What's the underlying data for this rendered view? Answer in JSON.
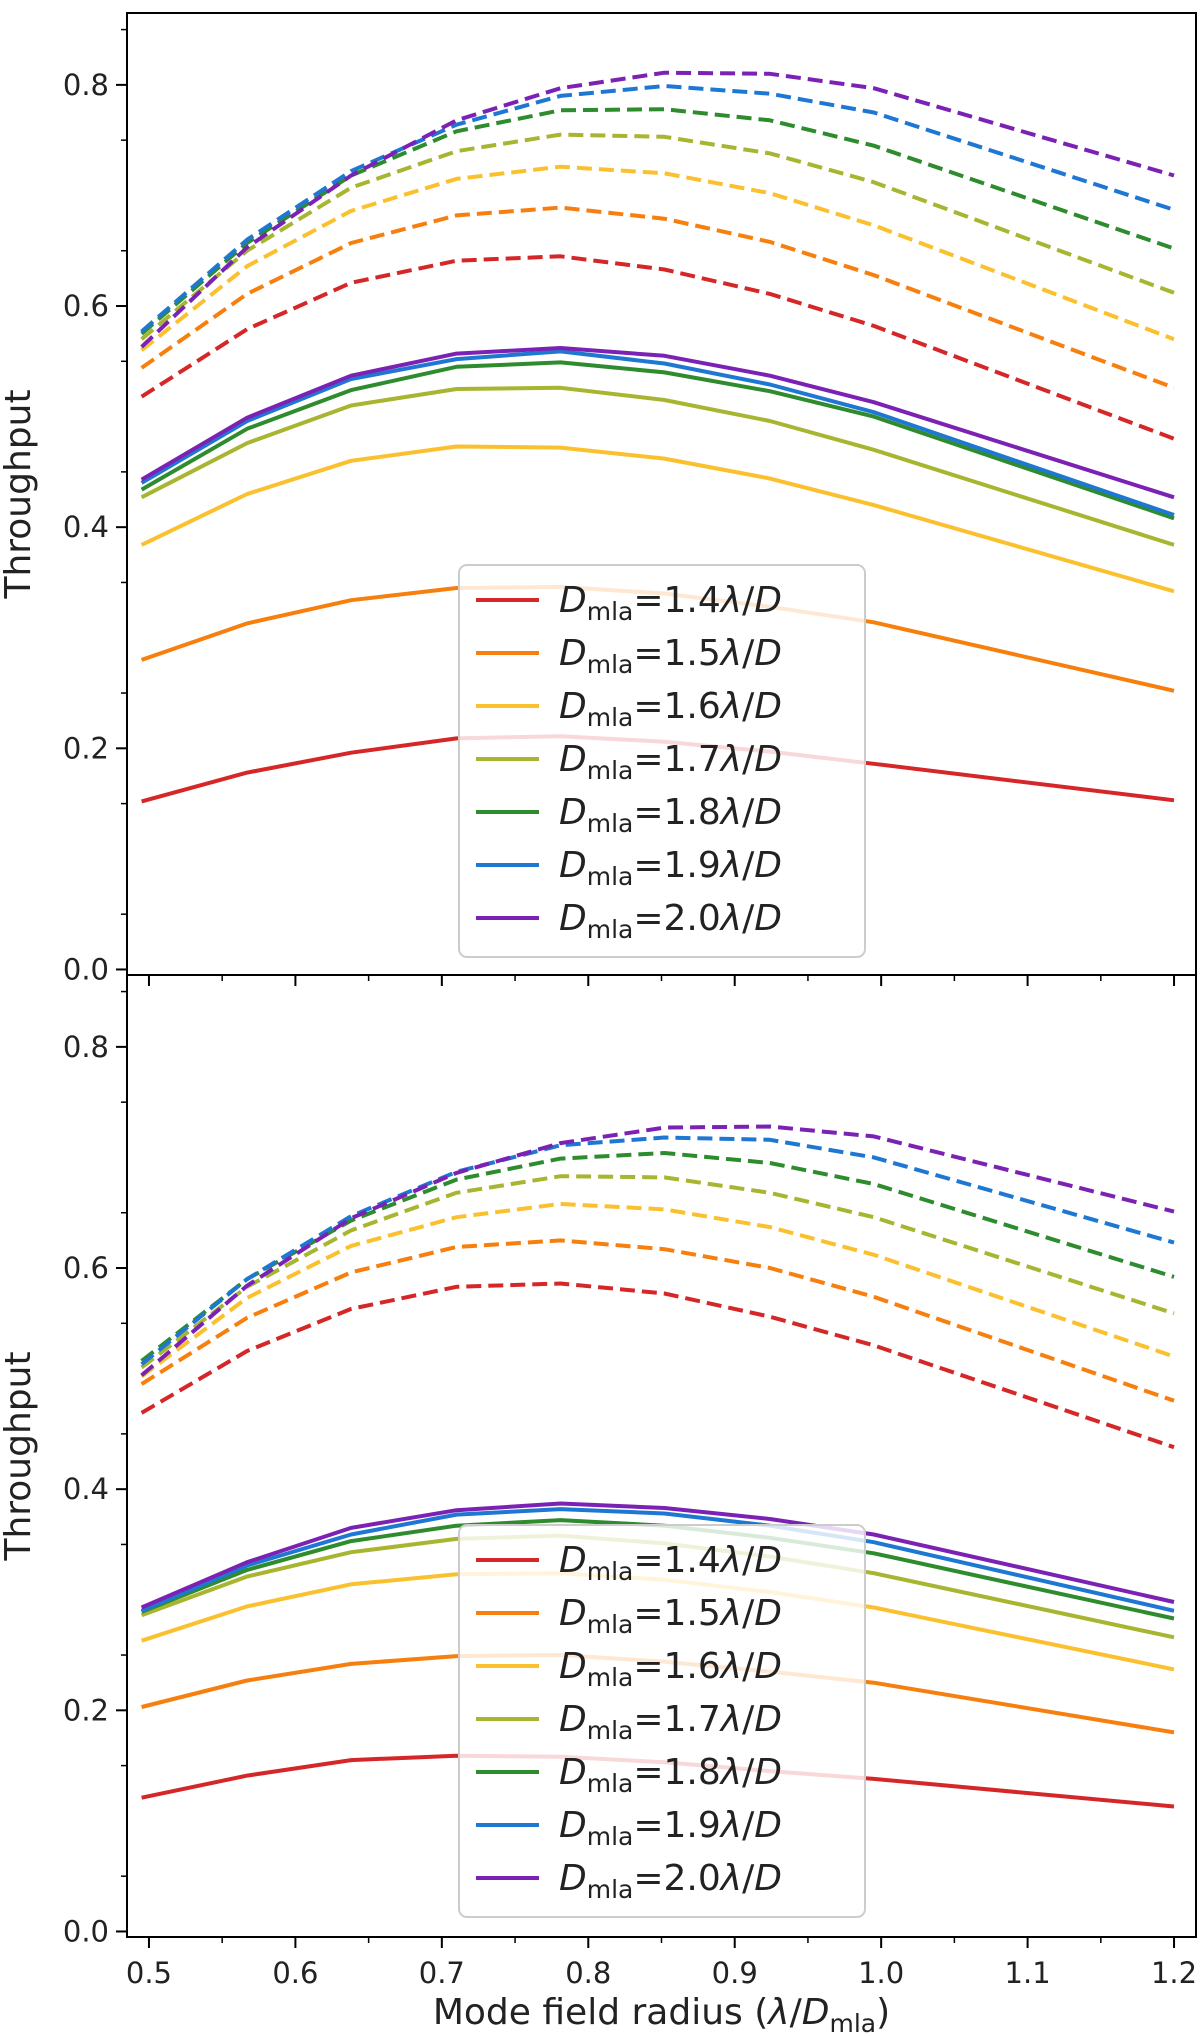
{
  "chart_data": [
    {
      "type": "line",
      "ylabel": "Throughput",
      "xlabel": "",
      "xlim": [
        0.485,
        1.215
      ],
      "ylim": [
        -0.005,
        0.865
      ],
      "xticks": [
        0.5,
        0.6,
        0.7,
        0.8,
        0.9,
        1.0,
        1.1,
        1.2
      ],
      "xtick_labels": [
        "0.5",
        "0.6",
        "0.7",
        "0.8",
        "0.9",
        "1.0",
        "1.1",
        "1.2"
      ],
      "yticks": [
        0.0,
        0.2,
        0.4,
        0.6,
        0.8
      ],
      "ytick_labels": [
        "0.0",
        "0.2",
        "0.4",
        "0.6",
        "0.8"
      ],
      "x": [
        0.495,
        0.567,
        0.638,
        0.71,
        0.781,
        0.852,
        0.924,
        0.995,
        1.2
      ],
      "legend_position": "lower-center",
      "legend": [
        {
          "sym": "D",
          "sub": "mla",
          "value": "=1.4",
          "lambda": "λ",
          "slash": "/",
          "D2": "D",
          "color": "#d62728"
        },
        {
          "sym": "D",
          "sub": "mla",
          "value": "=1.5",
          "lambda": "λ",
          "slash": "/",
          "D2": "D",
          "color": "#f77f0e"
        },
        {
          "sym": "D",
          "sub": "mla",
          "value": "=1.6",
          "lambda": "λ",
          "slash": "/",
          "D2": "D",
          "color": "#fbc02d"
        },
        {
          "sym": "D",
          "sub": "mla",
          "value": "=1.7",
          "lambda": "λ",
          "slash": "/",
          "D2": "D",
          "color": "#a8b530"
        },
        {
          "sym": "D",
          "sub": "mla",
          "value": "=1.8",
          "lambda": "λ",
          "slash": "/",
          "D2": "D",
          "color": "#2e8b2e"
        },
        {
          "sym": "D",
          "sub": "mla",
          "value": "=1.9",
          "lambda": "λ",
          "slash": "/",
          "D2": "D",
          "color": "#1f77d4"
        },
        {
          "sym": "D",
          "sub": "mla",
          "value": "=2.0",
          "lambda": "λ",
          "slash": "/",
          "D2": "D",
          "color": "#7b22b4"
        }
      ],
      "series": [
        {
          "color": "#d62728",
          "style": "solid",
          "values": [
            0.152,
            0.178,
            0.196,
            0.209,
            0.211,
            0.206,
            0.197,
            0.186,
            0.153
          ]
        },
        {
          "color": "#f77f0e",
          "style": "solid",
          "values": [
            0.28,
            0.313,
            0.334,
            0.345,
            0.346,
            0.34,
            0.328,
            0.314,
            0.252
          ]
        },
        {
          "color": "#fbc02d",
          "style": "solid",
          "values": [
            0.384,
            0.43,
            0.46,
            0.473,
            0.472,
            0.462,
            0.444,
            0.42,
            0.342
          ]
        },
        {
          "color": "#a8b530",
          "style": "solid",
          "values": [
            0.427,
            0.476,
            0.51,
            0.525,
            0.526,
            0.515,
            0.496,
            0.47,
            0.384
          ]
        },
        {
          "color": "#2e8b2e",
          "style": "solid",
          "values": [
            0.434,
            0.489,
            0.524,
            0.545,
            0.549,
            0.54,
            0.523,
            0.5,
            0.408
          ]
        },
        {
          "color": "#1f77d4",
          "style": "solid",
          "values": [
            0.44,
            0.496,
            0.534,
            0.552,
            0.559,
            0.548,
            0.529,
            0.504,
            0.411
          ]
        },
        {
          "color": "#7b22b4",
          "style": "solid",
          "values": [
            0.443,
            0.499,
            0.537,
            0.557,
            0.562,
            0.555,
            0.537,
            0.513,
            0.427
          ]
        },
        {
          "color": "#d62728",
          "style": "dashed",
          "values": [
            0.518,
            0.579,
            0.621,
            0.641,
            0.645,
            0.633,
            0.611,
            0.582,
            0.48
          ]
        },
        {
          "color": "#f77f0e",
          "style": "dashed",
          "values": [
            0.544,
            0.611,
            0.657,
            0.682,
            0.689,
            0.679,
            0.658,
            0.628,
            0.526
          ]
        },
        {
          "color": "#fbc02d",
          "style": "dashed",
          "values": [
            0.56,
            0.636,
            0.686,
            0.715,
            0.726,
            0.72,
            0.702,
            0.673,
            0.57
          ]
        },
        {
          "color": "#a8b530",
          "style": "dashed",
          "values": [
            0.57,
            0.65,
            0.707,
            0.74,
            0.755,
            0.753,
            0.738,
            0.712,
            0.612
          ]
        },
        {
          "color": "#2e8b2e",
          "style": "dashed",
          "values": [
            0.575,
            0.657,
            0.718,
            0.758,
            0.777,
            0.778,
            0.768,
            0.745,
            0.652
          ]
        },
        {
          "color": "#1f77d4",
          "style": "dashed",
          "values": [
            0.577,
            0.66,
            0.722,
            0.764,
            0.79,
            0.799,
            0.792,
            0.775,
            0.687
          ]
        },
        {
          "color": "#7b22b4",
          "style": "dashed",
          "values": [
            0.563,
            0.653,
            0.718,
            0.768,
            0.797,
            0.811,
            0.81,
            0.797,
            0.718
          ]
        }
      ]
    },
    {
      "type": "line",
      "ylabel": "Throughput",
      "xlabel": {
        "text": "Mode field radius (",
        "lambda": "λ",
        "slash": "/",
        "sym": "D",
        "sub": "mla",
        "close": ")"
      },
      "xlim": [
        0.485,
        1.215
      ],
      "ylim": [
        -0.005,
        0.865
      ],
      "xticks": [
        0.5,
        0.6,
        0.7,
        0.8,
        0.9,
        1.0,
        1.1,
        1.2
      ],
      "xtick_labels": [
        "0.5",
        "0.6",
        "0.7",
        "0.8",
        "0.9",
        "1.0",
        "1.1",
        "1.2"
      ],
      "yticks": [
        0.0,
        0.2,
        0.4,
        0.6,
        0.8
      ],
      "ytick_labels": [
        "0.0",
        "0.2",
        "0.4",
        "0.6",
        "0.8"
      ],
      "x": [
        0.495,
        0.567,
        0.638,
        0.71,
        0.781,
        0.852,
        0.924,
        0.995,
        1.2
      ],
      "legend_position": "lower-center",
      "legend": [
        {
          "sym": "D",
          "sub": "mla",
          "value": "=1.4",
          "lambda": "λ",
          "slash": "/",
          "D2": "D",
          "color": "#d62728"
        },
        {
          "sym": "D",
          "sub": "mla",
          "value": "=1.5",
          "lambda": "λ",
          "slash": "/",
          "D2": "D",
          "color": "#f77f0e"
        },
        {
          "sym": "D",
          "sub": "mla",
          "value": "=1.6",
          "lambda": "λ",
          "slash": "/",
          "D2": "D",
          "color": "#fbc02d"
        },
        {
          "sym": "D",
          "sub": "mla",
          "value": "=1.7",
          "lambda": "λ",
          "slash": "/",
          "D2": "D",
          "color": "#a8b530"
        },
        {
          "sym": "D",
          "sub": "mla",
          "value": "=1.8",
          "lambda": "λ",
          "slash": "/",
          "D2": "D",
          "color": "#2e8b2e"
        },
        {
          "sym": "D",
          "sub": "mla",
          "value": "=1.9",
          "lambda": "λ",
          "slash": "/",
          "D2": "D",
          "color": "#1f77d4"
        },
        {
          "sym": "D",
          "sub": "mla",
          "value": "=2.0",
          "lambda": "λ",
          "slash": "/",
          "D2": "D",
          "color": "#7b22b4"
        }
      ],
      "series": [
        {
          "color": "#d62728",
          "style": "solid",
          "values": [
            0.121,
            0.141,
            0.155,
            0.159,
            0.158,
            0.153,
            0.145,
            0.138,
            0.113
          ]
        },
        {
          "color": "#f77f0e",
          "style": "solid",
          "values": [
            0.203,
            0.227,
            0.242,
            0.249,
            0.25,
            0.244,
            0.235,
            0.225,
            0.18
          ]
        },
        {
          "color": "#fbc02d",
          "style": "solid",
          "values": [
            0.263,
            0.294,
            0.314,
            0.323,
            0.324,
            0.318,
            0.307,
            0.293,
            0.237
          ]
        },
        {
          "color": "#a8b530",
          "style": "solid",
          "values": [
            0.286,
            0.321,
            0.343,
            0.355,
            0.358,
            0.351,
            0.339,
            0.324,
            0.266
          ]
        },
        {
          "color": "#2e8b2e",
          "style": "solid",
          "values": [
            0.289,
            0.327,
            0.353,
            0.367,
            0.372,
            0.367,
            0.356,
            0.342,
            0.283
          ]
        },
        {
          "color": "#1f77d4",
          "style": "solid",
          "values": [
            0.29,
            0.331,
            0.359,
            0.377,
            0.382,
            0.378,
            0.367,
            0.352,
            0.29
          ]
        },
        {
          "color": "#7b22b4",
          "style": "solid",
          "values": [
            0.293,
            0.334,
            0.365,
            0.381,
            0.387,
            0.383,
            0.373,
            0.359,
            0.298
          ]
        },
        {
          "color": "#d62728",
          "style": "dashed",
          "values": [
            0.469,
            0.525,
            0.563,
            0.583,
            0.586,
            0.577,
            0.556,
            0.53,
            0.438
          ]
        },
        {
          "color": "#f77f0e",
          "style": "dashed",
          "values": [
            0.495,
            0.555,
            0.596,
            0.619,
            0.625,
            0.617,
            0.6,
            0.574,
            0.48
          ]
        },
        {
          "color": "#fbc02d",
          "style": "dashed",
          "values": [
            0.502,
            0.573,
            0.62,
            0.646,
            0.658,
            0.653,
            0.637,
            0.612,
            0.52
          ]
        },
        {
          "color": "#a8b530",
          "style": "dashed",
          "values": [
            0.51,
            0.583,
            0.634,
            0.668,
            0.683,
            0.682,
            0.668,
            0.646,
            0.559
          ]
        },
        {
          "color": "#2e8b2e",
          "style": "dashed",
          "values": [
            0.516,
            0.59,
            0.643,
            0.68,
            0.699,
            0.704,
            0.695,
            0.676,
            0.592
          ]
        },
        {
          "color": "#1f77d4",
          "style": "dashed",
          "values": [
            0.513,
            0.59,
            0.647,
            0.687,
            0.711,
            0.718,
            0.716,
            0.7,
            0.623
          ]
        },
        {
          "color": "#7b22b4",
          "style": "dashed",
          "values": [
            0.503,
            0.584,
            0.645,
            0.686,
            0.713,
            0.727,
            0.728,
            0.719,
            0.651
          ]
        }
      ]
    }
  ]
}
